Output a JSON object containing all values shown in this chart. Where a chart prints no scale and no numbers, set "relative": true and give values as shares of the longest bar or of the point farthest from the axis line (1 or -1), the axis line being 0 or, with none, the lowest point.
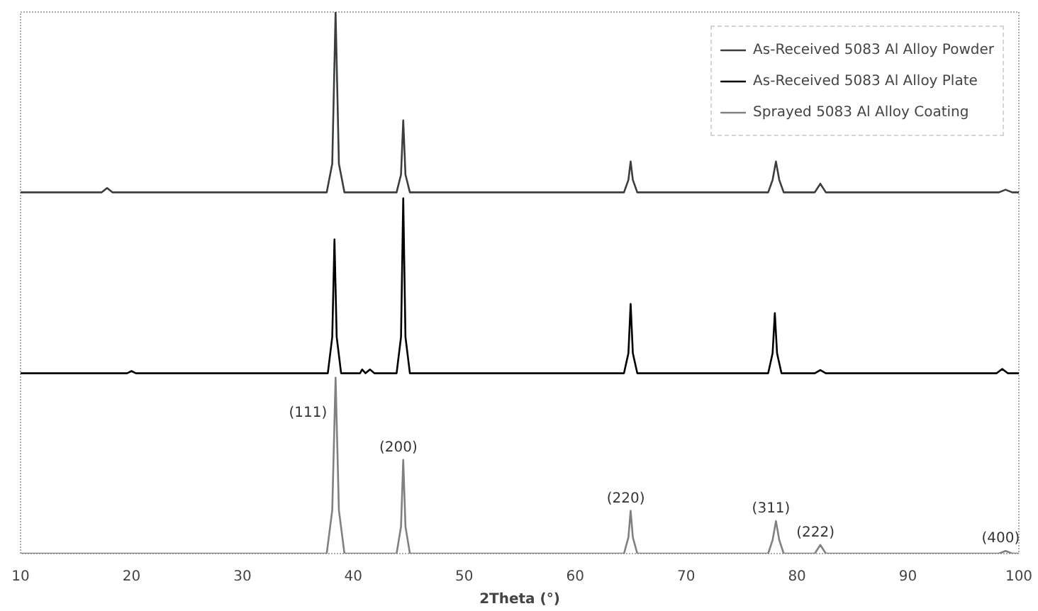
{
  "chart_data": {
    "type": "line",
    "relative": true,
    "xlabel": "2Theta (°)",
    "xlim": [
      10,
      100
    ],
    "xticks": [
      10,
      20,
      30,
      40,
      50,
      60,
      70,
      80,
      90,
      100
    ],
    "grid": false,
    "legend": "top right",
    "marker": "none",
    "line_style": "solid",
    "series": [
      {
        "name": "As-Received 5083 Al Alloy Powder",
        "color": "#3a3f3a",
        "x": [
          10,
          17.3,
          17.8,
          18.3,
          37.6,
          38.1,
          38.4,
          38.7,
          39.2,
          43.9,
          44.3,
          44.5,
          44.7,
          45.1,
          64.4,
          64.8,
          65.0,
          65.2,
          65.6,
          77.4,
          77.8,
          78.1,
          78.4,
          78.8,
          81.6,
          82.1,
          82.6,
          98.2,
          98.8,
          99.4,
          100
        ],
        "values": [
          0.667,
          0.667,
          0.675,
          0.667,
          0.667,
          0.72,
          1.0,
          0.72,
          0.667,
          0.667,
          0.7,
          0.8,
          0.7,
          0.667,
          0.667,
          0.69,
          0.724,
          0.69,
          0.667,
          0.667,
          0.69,
          0.724,
          0.69,
          0.667,
          0.667,
          0.683,
          0.667,
          0.667,
          0.672,
          0.667,
          0.667
        ]
      },
      {
        "name": "As-Received 5083 Al Alloy Plate",
        "color": "#000000",
        "x": [
          10,
          19.6,
          20,
          20.4,
          37.7,
          38.1,
          38.3,
          38.5,
          38.9,
          40.6,
          40.8,
          41.1,
          41.5,
          41.9,
          43.9,
          44.3,
          44.5,
          44.7,
          45.1,
          64.4,
          64.8,
          65.0,
          65.2,
          65.6,
          77.4,
          77.8,
          78.0,
          78.2,
          78.6,
          81.6,
          82.1,
          82.6,
          98,
          98.5,
          99,
          100
        ],
        "values": [
          0.333,
          0.333,
          0.337,
          0.333,
          0.333,
          0.4,
          0.58,
          0.4,
          0.333,
          0.333,
          0.34,
          0.333,
          0.34,
          0.333,
          0.333,
          0.4,
          0.656,
          0.4,
          0.333,
          0.333,
          0.37,
          0.461,
          0.37,
          0.333,
          0.333,
          0.37,
          0.444,
          0.37,
          0.333,
          0.333,
          0.339,
          0.333,
          0.333,
          0.341,
          0.333,
          0.333
        ]
      },
      {
        "name": "Sprayed 5083 Al Alloy Coating",
        "color": "#808080",
        "x": [
          10,
          37.6,
          38.1,
          38.4,
          38.7,
          39.2,
          43.9,
          44.3,
          44.5,
          44.7,
          45.1,
          64.4,
          64.8,
          65.0,
          65.2,
          65.6,
          77.4,
          77.8,
          78.1,
          78.4,
          78.8,
          81.6,
          82.1,
          82.6,
          98.2,
          98.8,
          99.4,
          100
        ],
        "values": [
          0,
          0,
          0.08,
          0.325,
          0.08,
          0,
          0,
          0.05,
          0.173,
          0.05,
          0,
          0,
          0.03,
          0.079,
          0.03,
          0,
          0,
          0.025,
          0.06,
          0.025,
          0,
          0,
          0.016,
          0,
          0,
          0.005,
          0,
          0
        ]
      }
    ],
    "annotations": [
      {
        "text": "(111)",
        "x": 38.4,
        "y": 0.325
      },
      {
        "text": "(200)",
        "x": 44.5,
        "y": 0.173
      },
      {
        "text": "(220)",
        "x": 65.0,
        "y": 0.079
      },
      {
        "text": "(311)",
        "x": 78.1,
        "y": 0.06
      },
      {
        "text": "(222)",
        "x": 82.1,
        "y": 0.016
      },
      {
        "text": "(400)",
        "x": 98.8,
        "y": 0.005
      }
    ]
  }
}
